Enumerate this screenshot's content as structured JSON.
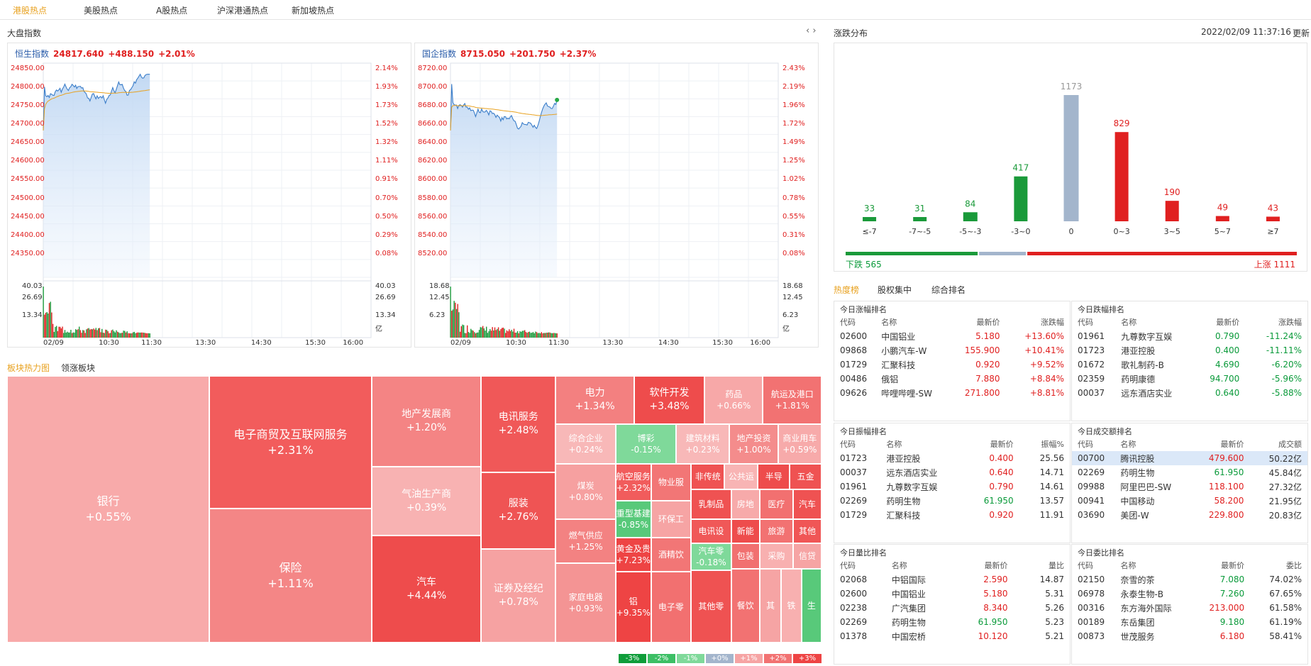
{
  "nav": {
    "tabs": [
      "港股热点",
      "美股热点",
      "A股热点",
      "沪深港通热点",
      "新加坡热点"
    ],
    "active": 0
  },
  "market": {
    "title": "大盘指数"
  },
  "idx1": {
    "name": "恒生指数",
    "value": "24817.640",
    "change": "+488.150",
    "pct": "+2.01%",
    "yleft": [
      "24850.00",
      "24800.00",
      "24750.00",
      "24700.00",
      "24650.00",
      "24600.00",
      "24550.00",
      "24500.00",
      "24450.00",
      "24400.00",
      "24350.00"
    ],
    "yright": [
      "2.14%",
      "1.93%",
      "1.73%",
      "1.52%",
      "1.32%",
      "1.11%",
      "0.91%",
      "0.70%",
      "0.50%",
      "0.29%",
      "0.08%"
    ],
    "vleft": [
      "40.03",
      "26.69",
      "13.34"
    ],
    "vright": [
      "40.03",
      "26.69",
      "13.34",
      "亿"
    ]
  },
  "idx2": {
    "name": "国企指数",
    "value": "8715.050",
    "change": "+201.750",
    "pct": "+2.37%",
    "yleft": [
      "8720.00",
      "8700.00",
      "8680.00",
      "8660.00",
      "8640.00",
      "8620.00",
      "8600.00",
      "8580.00",
      "8560.00",
      "8540.00",
      "8520.00"
    ],
    "yright": [
      "2.43%",
      "2.19%",
      "1.96%",
      "1.72%",
      "1.49%",
      "1.25%",
      "1.02%",
      "0.78%",
      "0.55%",
      "0.31%",
      "0.08%"
    ],
    "vleft": [
      "18.68",
      "12.45",
      "6.23"
    ],
    "vright": [
      "18.68",
      "12.45",
      "6.23",
      "亿"
    ]
  },
  "xaxis": [
    "02/09",
    "10:30",
    "11:30",
    "13:30",
    "14:30",
    "15:30",
    "16:00"
  ],
  "dist": {
    "title": "涨跌分布",
    "time": "2022/02/09 11:37:16",
    "refresh": "更新",
    "down_label": "下跌 565",
    "up_label": "上涨 1111",
    "down": 565,
    "up": 1111
  },
  "chart_data": {
    "type": "bar",
    "categories": [
      "≤-7",
      "-7~-5",
      "-5~-3",
      "-3~0",
      "0",
      "0~3",
      "3~5",
      "5~7",
      "≥7"
    ],
    "values": [
      33,
      31,
      84,
      417,
      1173,
      829,
      190,
      49,
      43
    ],
    "ylim": [
      0,
      1173
    ],
    "colors": [
      "#1a9a3a",
      "#1a9a3a",
      "#1a9a3a",
      "#1a9a3a",
      "#a3b5cc",
      "#e02020",
      "#e02020",
      "#e02020",
      "#e02020"
    ]
  },
  "heat": {
    "tabs": [
      "板块热力图",
      "领涨板块"
    ],
    "legend": [
      "-3%",
      "-2%",
      "-1%",
      "+0%",
      "+1%",
      "+2%",
      "+3%"
    ],
    "tiles": [
      {
        "n": "银行",
        "p": "+0.55%",
        "c": "#f8aaaa"
      },
      {
        "n": "电子商贸及互联网服务",
        "p": "+2.31%",
        "c": "#f25c5c"
      },
      {
        "n": "保险",
        "p": "+1.11%",
        "c": "#f48686"
      },
      {
        "n": "地产发展商",
        "p": "+1.20%",
        "c": "#f48484"
      },
      {
        "n": "气油生产商",
        "p": "+0.39%",
        "c": "#f8b2b2"
      },
      {
        "n": "汽车",
        "p": "+4.44%",
        "c": "#ee4c4c"
      },
      {
        "n": "电讯服务",
        "p": "+2.48%",
        "c": "#f05858"
      },
      {
        "n": "服装",
        "p": "+2.76%",
        "c": "#ef5454"
      },
      {
        "n": "证券及经纪",
        "p": "+0.78%",
        "c": "#f6a2a2"
      },
      {
        "n": "电力",
        "p": "+1.34%",
        "c": "#f38080"
      },
      {
        "n": "软件开发",
        "p": "+3.48%",
        "c": "#ee4c4c"
      },
      {
        "n": "药品",
        "p": "+0.66%",
        "c": "#f7a8a8"
      },
      {
        "n": "航运及港口",
        "p": "+1.81%",
        "c": "#f27272"
      },
      {
        "n": "综合企业",
        "p": "+0.24%",
        "c": "#f8b8b8"
      },
      {
        "n": "博彩",
        "p": "-0.15%",
        "c": "#7fd99a"
      },
      {
        "n": "建筑材料",
        "p": "+0.23%",
        "c": "#f8b8b8"
      },
      {
        "n": "地产投资",
        "p": "+1.00%",
        "c": "#f48c8c"
      },
      {
        "n": "商业用车",
        "p": "+0.59%",
        "c": "#f7aaaa"
      },
      {
        "n": "煤炭",
        "p": "+0.80%",
        "c": "#f6a0a0"
      },
      {
        "n": "航空服务",
        "p": "+2.32%",
        "c": "#f15c5c"
      },
      {
        "n": "物业服",
        "p": "",
        "c": "#f27676"
      },
      {
        "n": "非传统",
        "p": "",
        "c": "#ef5252"
      },
      {
        "n": "公共运",
        "p": "",
        "c": "#f8b4b4"
      },
      {
        "n": "半导",
        "p": "",
        "c": "#ee4c4c"
      },
      {
        "n": "五金",
        "p": "",
        "c": "#ef5252"
      },
      {
        "n": "重型基建",
        "p": "-0.85%",
        "c": "#58c97a"
      },
      {
        "n": "环保工",
        "p": "",
        "c": "#f6a4a4"
      },
      {
        "n": "乳制品",
        "p": "",
        "c": "#ef5252"
      },
      {
        "n": "房地",
        "p": "",
        "c": "#f7aaaa"
      },
      {
        "n": "医疗",
        "p": "",
        "c": "#f27070"
      },
      {
        "n": "汽车",
        "p": "",
        "c": "#ef5252"
      },
      {
        "n": "燃气供应",
        "p": "+1.25%",
        "c": "#f38282"
      },
      {
        "n": "电讯设",
        "p": "",
        "c": "#f05858"
      },
      {
        "n": "新能",
        "p": "",
        "c": "#ee4c4c"
      },
      {
        "n": "旅游",
        "p": "",
        "c": "#f27272"
      },
      {
        "n": "其他",
        "p": "",
        "c": "#f05656"
      },
      {
        "n": "黄金及贵",
        "p": "+7.23%",
        "c": "#ee4444"
      },
      {
        "n": "酒精饮",
        "p": "",
        "c": "#f27676"
      },
      {
        "n": "汽车零",
        "p": "-0.18%",
        "c": "#7fd99a"
      },
      {
        "n": "包装",
        "p": "",
        "c": "#f17070"
      },
      {
        "n": "采购",
        "p": "",
        "c": "#f8b0b0"
      },
      {
        "n": "信贷",
        "p": "",
        "c": "#f6a4a4"
      },
      {
        "n": "家庭电器",
        "p": "+0.93%",
        "c": "#f49494"
      },
      {
        "n": "铝",
        "p": "+9.35%",
        "c": "#ee4444"
      },
      {
        "n": "电子零",
        "p": "",
        "c": "#f27070"
      },
      {
        "n": "其他零",
        "p": "",
        "c": "#ef5252"
      },
      {
        "n": "餐饮",
        "p": "",
        "c": "#f27272"
      },
      {
        "n": "其",
        "p": "",
        "c": "#f6a4a4"
      },
      {
        "n": "铁",
        "p": "",
        "c": "#f8b0b0"
      },
      {
        "n": "生",
        "p": "",
        "c": "#58c97a"
      }
    ]
  },
  "rank": {
    "tabs": [
      "热度榜",
      "股权集中",
      "综合排名"
    ],
    "t1": {
      "title": "今日涨幅排名",
      "h": [
        "代码",
        "名称",
        "最新价",
        "涨跌幅"
      ],
      "rows": [
        [
          "02600",
          "中国铝业",
          "5.180",
          "+13.60%"
        ],
        [
          "09868",
          "小鹏汽车-W",
          "155.900",
          "+10.41%"
        ],
        [
          "01729",
          "汇聚科技",
          "0.920",
          "+9.52%"
        ],
        [
          "00486",
          "俄铝",
          "7.880",
          "+8.84%"
        ],
        [
          "09626",
          "哔哩哔哩-SW",
          "271.800",
          "+8.81%"
        ]
      ]
    },
    "t2": {
      "title": "今日跌幅排名",
      "h": [
        "代码",
        "名称",
        "最新价",
        "涨跌幅"
      ],
      "rows": [
        [
          "01961",
          "九尊数字互娱",
          "0.790",
          "-11.24%"
        ],
        [
          "01723",
          "港亚控股",
          "0.400",
          "-11.11%"
        ],
        [
          "01672",
          "歌礼制药-B",
          "4.690",
          "-6.20%"
        ],
        [
          "02359",
          "药明康德",
          "94.700",
          "-5.96%"
        ],
        [
          "00037",
          "远东酒店实业",
          "0.640",
          "-5.88%"
        ]
      ]
    },
    "t3": {
      "title": "今日振幅排名",
      "h": [
        "代码",
        "名称",
        "最新价",
        "振幅%"
      ],
      "rows": [
        [
          "01723",
          "港亚控股",
          "0.400",
          "25.56"
        ],
        [
          "00037",
          "远东酒店实业",
          "0.640",
          "14.71"
        ],
        [
          "01961",
          "九尊数字互娱",
          "0.790",
          "14.61"
        ],
        [
          "02269",
          "药明生物",
          "61.950",
          "13.57"
        ],
        [
          "01729",
          "汇聚科技",
          "0.920",
          "11.91"
        ]
      ]
    },
    "t4": {
      "title": "今日成交额排名",
      "h": [
        "代码",
        "名称",
        "最新价",
        "成交额"
      ],
      "rows": [
        [
          "00700",
          "腾讯控股",
          "479.600",
          "50.22亿"
        ],
        [
          "02269",
          "药明生物",
          "61.950",
          "45.84亿"
        ],
        [
          "09988",
          "阿里巴巴-SW",
          "118.100",
          "27.32亿"
        ],
        [
          "00941",
          "中国移动",
          "58.200",
          "21.95亿"
        ],
        [
          "03690",
          "美团-W",
          "229.800",
          "20.83亿"
        ]
      ]
    },
    "t5": {
      "title": "今日量比排名",
      "h": [
        "代码",
        "名称",
        "最新价",
        "量比"
      ],
      "rows": [
        [
          "02068",
          "中铝国际",
          "2.590",
          "14.87"
        ],
        [
          "02600",
          "中国铝业",
          "5.180",
          "5.31"
        ],
        [
          "02238",
          "广汽集团",
          "8.340",
          "5.26"
        ],
        [
          "02269",
          "药明生物",
          "61.950",
          "5.23"
        ],
        [
          "01378",
          "中国宏桥",
          "10.120",
          "5.21"
        ]
      ]
    },
    "t6": {
      "title": "今日委比排名",
      "h": [
        "代码",
        "名称",
        "最新价",
        "委比"
      ],
      "rows": [
        [
          "02150",
          "奈雪的茶",
          "7.080",
          "74.02%"
        ],
        [
          "06978",
          "永泰生物-B",
          "7.260",
          "67.65%"
        ],
        [
          "00316",
          "东方海外国际",
          "213.000",
          "61.58%"
        ],
        [
          "00189",
          "东岳集团",
          "9.180",
          "61.19%"
        ],
        [
          "00873",
          "世茂服务",
          "6.180",
          "58.41%"
        ]
      ]
    }
  }
}
